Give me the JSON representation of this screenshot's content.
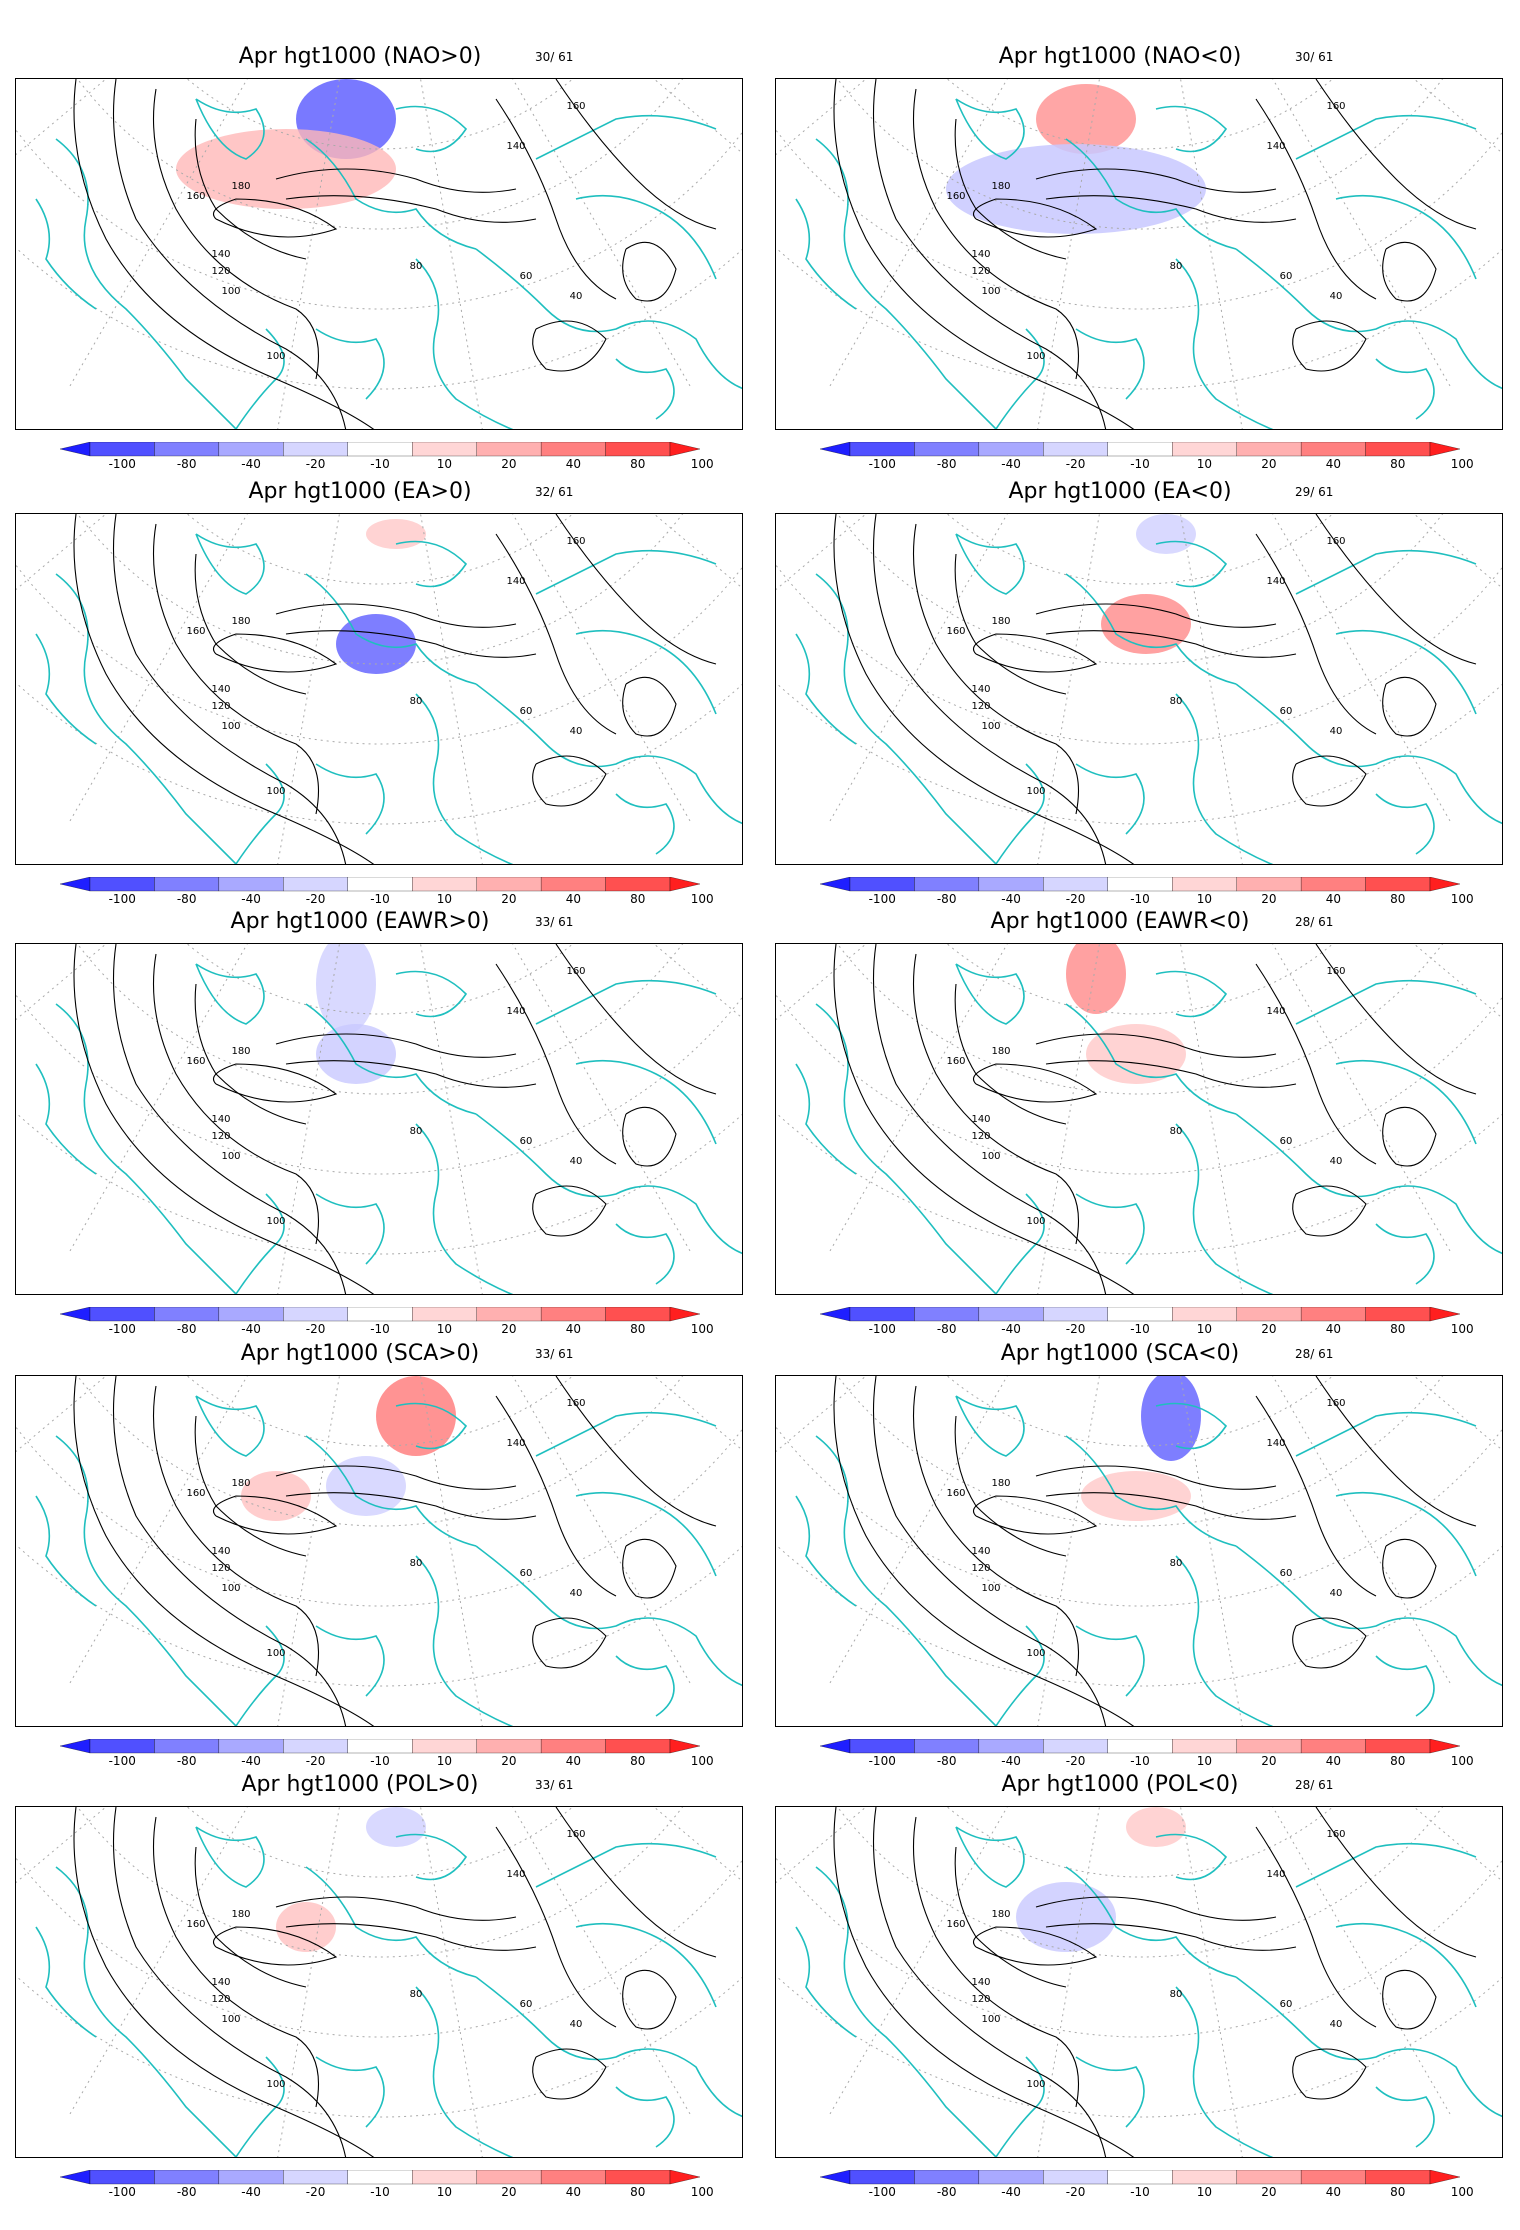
{
  "panels": [
    {
      "title": "Apr hgt1000 (NAO>0)",
      "count": "30/ 61"
    },
    {
      "title": "Apr hgt1000 (NAO<0)",
      "count": "30/ 61"
    },
    {
      "title": "Apr hgt1000 (EA>0)",
      "count": "32/ 61"
    },
    {
      "title": "Apr hgt1000 (EA<0)",
      "count": "29/ 61"
    },
    {
      "title": "Apr  hgt1000 (EAWR>0)",
      "count": "33/ 61"
    },
    {
      "title": "Apr hgt1000 (EAWR<0)",
      "count": "28/ 61"
    },
    {
      "title": "Apr hgt1000 (SCA>0)",
      "count": "33/ 61"
    },
    {
      "title": "Apr hgt1000 (SCA<0)",
      "count": "28/ 61"
    },
    {
      "title": "Apr hgt1000 (POL>0)",
      "count": "33/ 61"
    },
    {
      "title": "Apr hgt1000 (POL<0)",
      "count": "28/ 61"
    }
  ],
  "colorbar": {
    "labels": [
      "-100",
      "-80",
      "-40",
      "-20",
      "-10",
      "10",
      "20",
      "40",
      "80",
      "100"
    ],
    "colors": [
      "#1f1fff",
      "#5050ff",
      "#8080ff",
      "#a9a9ff",
      "#d6d6ff",
      "#ffffff",
      "#ffd6d6",
      "#ffb0b0",
      "#ff8080",
      "#ff5050",
      "#ff1f1f"
    ]
  },
  "contour_labels": [
    "100",
    "120",
    "140",
    "160",
    "180",
    "80",
    "60",
    "40"
  ],
  "colors": {
    "coast": "#1fbfbf",
    "contour": "#000000",
    "grid": "#aaaaaa"
  }
}
